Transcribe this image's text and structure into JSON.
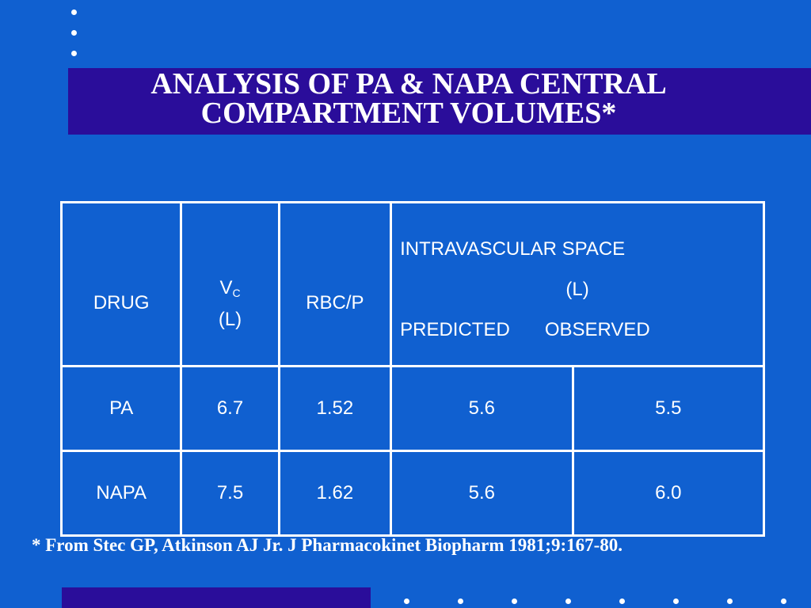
{
  "slide": {
    "title_line1": "ANALYSIS OF PA & NAPA CENTRAL",
    "title_line2": "COMPARTMENT VOLUMES*",
    "footnote": "* From Stec GP, Atkinson AJ Jr. J Pharmacokinet Biopharm 1981;9:167-80."
  },
  "table": {
    "headers": {
      "drug": "DRUG",
      "vc_main": "V",
      "vc_sub": "C",
      "vc_unit": "(L)",
      "rbc": "RBC/P",
      "intravascular": "INTRAVASCULAR SPACE",
      "intravascular_unit": "(L)",
      "predicted": "PREDICTED",
      "observed": "OBSERVED"
    },
    "rows": [
      {
        "drug": "PA",
        "vc": "6.7",
        "rbc": "1.52",
        "predicted": "5.6",
        "observed": "5.5"
      },
      {
        "drug": "NAPA",
        "vc": "7.5",
        "rbc": "1.62",
        "predicted": "5.6",
        "observed": "6.0"
      }
    ]
  },
  "colors": {
    "background": "#1060d0",
    "band": "#2a0d9a",
    "text": "#ffffff"
  }
}
